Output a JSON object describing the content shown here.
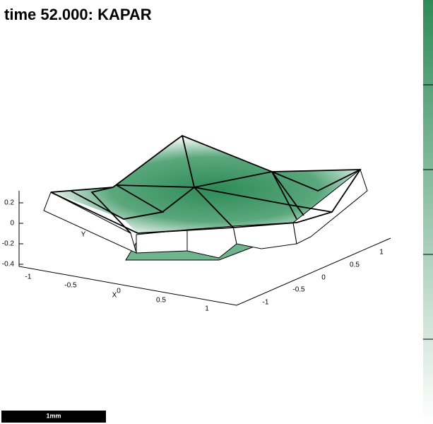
{
  "title": "time 52.000: KAPAR",
  "z_axis": {
    "ticks": [
      "0.2",
      "0",
      "-0.2",
      "-0.4"
    ]
  },
  "x_axis": {
    "label": "X",
    "ticks": [
      "-1",
      "-0.5",
      "0",
      "0.5",
      "1"
    ]
  },
  "y_axis": {
    "label": "Y",
    "ticks": [
      "-1",
      "-0.5",
      "0",
      "0.5",
      "1"
    ]
  },
  "scale_bar": "1mm"
}
